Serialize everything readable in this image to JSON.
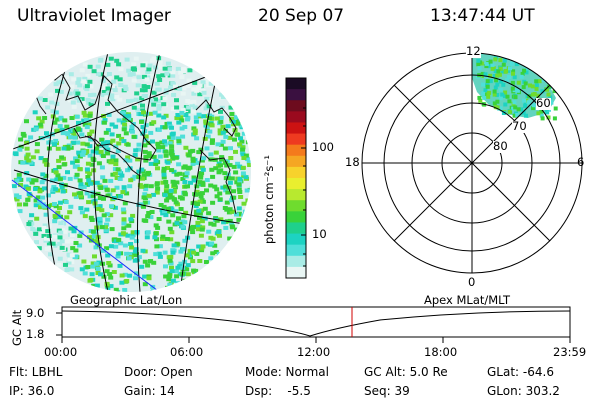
{
  "header": {
    "instrument": "Ultraviolet Imager",
    "date": "20 Sep 07",
    "time": "13:47:44 UT"
  },
  "colorbar": {
    "unit_label": "photon cm⁻²s⁻¹",
    "ticks": [
      "100",
      "10"
    ],
    "colors": [
      "#1a0b24",
      "#3a1040",
      "#6d0c1e",
      "#9a0a1e",
      "#cc1212",
      "#ee3a20",
      "#f47a1c",
      "#f5a623",
      "#f7d22c",
      "#e9ef2f",
      "#b8e92f",
      "#6fdc2e",
      "#39d23a",
      "#1fd08c",
      "#1dd3c2",
      "#4fdfd9",
      "#a9ece6",
      "#e9f6f4"
    ]
  },
  "geo_map": {
    "label": "Geographic Lat/Lon"
  },
  "polar_plot": {
    "label": "Apex MLat/MLT",
    "mlt_labels": {
      "top": "12",
      "left": "18",
      "right": "6",
      "bottom": "0"
    },
    "lat_labels": [
      "60",
      "70",
      "80"
    ]
  },
  "altitude_panel": {
    "axis_label": "GC Alt",
    "y_ticks": [
      "9.0",
      "1.8"
    ],
    "x_ticks": [
      "00:00",
      "06:00",
      "12:00",
      "18:00",
      "23:59"
    ]
  },
  "status": {
    "flt": "Flt: LBHL",
    "ip": "IP: 36.0",
    "door": "Door: Open",
    "gain": "Gain: 14",
    "mode": "Mode: Normal",
    "dsp": "Dsp:    -5.5",
    "gc_alt": "GC Alt: 5.0 Re",
    "seq": "Seq: 39",
    "glat": "GLat: -64.6",
    "glon": "GLon: 303.2"
  }
}
